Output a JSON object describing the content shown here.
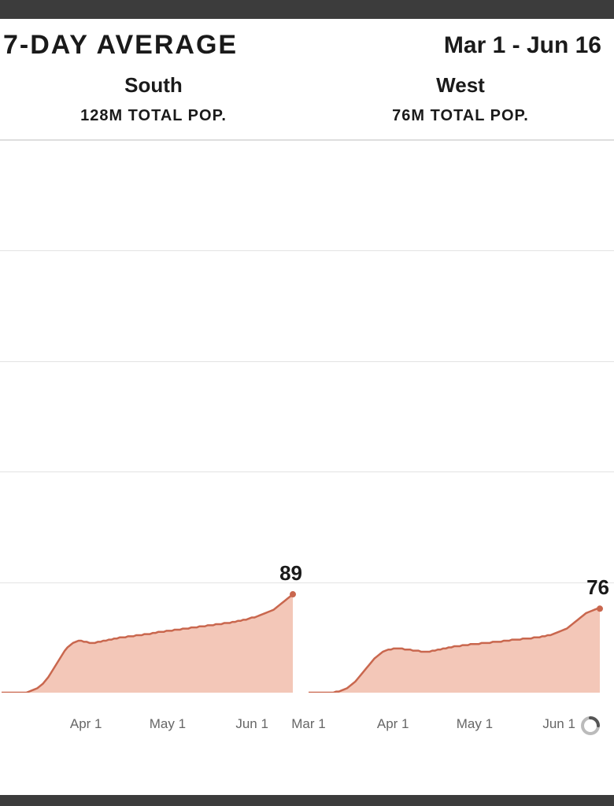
{
  "header": {
    "title": "7-DAY AVERAGE",
    "date_range": "Mar 1 - Jun 16"
  },
  "regions": [
    {
      "name": "South",
      "population_label": "128M TOTAL POP."
    },
    {
      "name": "West",
      "population_label": "76M TOTAL POP."
    }
  ],
  "chart": {
    "type": "area",
    "ylim": [
      0,
      500
    ],
    "grid_y": [
      100,
      200,
      300,
      400,
      500
    ],
    "grid_color": "#e3e3e3",
    "background_color": "#ffffff",
    "line_color": "#c9674e",
    "fill_color": "#f3c7b8",
    "line_width": 2.5,
    "marker_radius": 4,
    "x_start": "Mar 1",
    "x_end": "Jun 16",
    "x_total_days": 107,
    "x_ticks": [
      {
        "label": "Mar 1",
        "day": 0
      },
      {
        "label": "Apr 1",
        "day": 31
      },
      {
        "label": "May 1",
        "day": 61
      },
      {
        "label": "Jun 1",
        "day": 92
      }
    ],
    "end_label_fontsize": 26,
    "axis_label_fontsize": 17,
    "axis_label_color": "#666666"
  },
  "series": {
    "south": {
      "end_value_label": "89",
      "values": [
        0,
        0,
        0,
        0,
        0,
        0,
        0,
        0,
        0,
        0,
        1,
        2,
        3,
        4,
        6,
        8,
        11,
        14,
        18,
        22,
        26,
        30,
        34,
        38,
        41,
        43,
        45,
        46,
        47,
        47,
        46,
        46,
        45,
        45,
        45,
        46,
        46,
        47,
        47,
        48,
        48,
        49,
        49,
        50,
        50,
        50,
        51,
        51,
        51,
        52,
        52,
        52,
        53,
        53,
        53,
        54,
        54,
        55,
        55,
        55,
        56,
        56,
        56,
        57,
        57,
        57,
        58,
        58,
        58,
        59,
        59,
        59,
        60,
        60,
        60,
        61,
        61,
        61,
        62,
        62,
        62,
        63,
        63,
        63,
        64,
        64,
        65,
        65,
        66,
        66,
        67,
        68,
        68,
        69,
        70,
        71,
        72,
        73,
        74,
        75,
        77,
        79,
        81,
        83,
        85,
        87,
        89
      ]
    },
    "west": {
      "end_value_label": "76",
      "values": [
        0,
        0,
        0,
        0,
        0,
        0,
        0,
        0,
        0,
        0,
        1,
        1,
        2,
        3,
        4,
        6,
        8,
        10,
        13,
        16,
        19,
        22,
        25,
        28,
        31,
        33,
        35,
        37,
        38,
        39,
        39,
        40,
        40,
        40,
        40,
        39,
        39,
        39,
        38,
        38,
        38,
        37,
        37,
        37,
        37,
        38,
        38,
        39,
        39,
        40,
        40,
        41,
        41,
        42,
        42,
        42,
        43,
        43,
        43,
        44,
        44,
        44,
        44,
        45,
        45,
        45,
        45,
        46,
        46,
        46,
        46,
        47,
        47,
        47,
        48,
        48,
        48,
        48,
        49,
        49,
        49,
        49,
        50,
        50,
        50,
        51,
        51,
        52,
        52,
        53,
        54,
        55,
        56,
        57,
        58,
        60,
        62,
        64,
        66,
        68,
        70,
        72,
        73,
        74,
        75,
        76,
        76
      ]
    }
  },
  "title_fontsize": 34,
  "range_fontsize": 30,
  "region_name_fontsize": 26,
  "region_pop_fontsize": 20,
  "chrome_color": "#3c3c3c"
}
